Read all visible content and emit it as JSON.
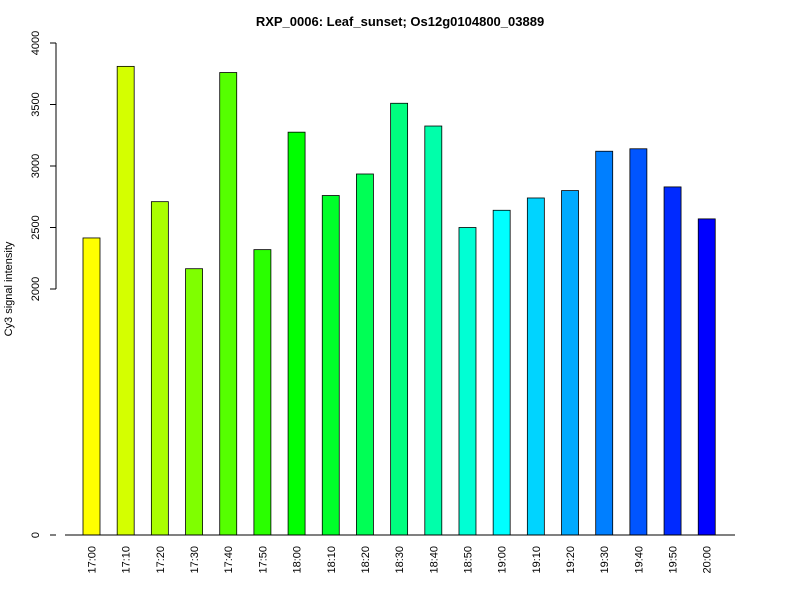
{
  "chart_data": {
    "type": "bar",
    "title": "RXP_0006: Leaf_sunset; Os12g0104800_03889",
    "xlabel": "",
    "ylabel": "Cy3 signal intensity",
    "ylim": [
      0,
      4000
    ],
    "y_ticks": [
      "0",
      "2000",
      "2500",
      "3000",
      "3500",
      "4000"
    ],
    "grid": false,
    "categories": [
      "17:00",
      "17:10",
      "17:20",
      "17:30",
      "17:40",
      "17:50",
      "18:00",
      "18:10",
      "18:20",
      "18:30",
      "18:40",
      "18:50",
      "19:00",
      "19:10",
      "19:20",
      "19:30",
      "19:40",
      "19:50",
      "20:00"
    ],
    "values": [
      2415,
      3810,
      2710,
      2165,
      3760,
      2320,
      3275,
      2760,
      2935,
      3510,
      3325,
      2500,
      2640,
      2740,
      2800,
      3120,
      3140,
      2830,
      2570
    ],
    "colors": [
      "#ffff00",
      "#d4ff00",
      "#aaff00",
      "#7fff00",
      "#55ff00",
      "#2aff00",
      "#00ff00",
      "#00ff2a",
      "#00ff55",
      "#00ff7f",
      "#00ffaa",
      "#00ffd4",
      "#00ffff",
      "#00d4ff",
      "#00aaff",
      "#007fff",
      "#0055ff",
      "#002aff",
      "#0000ff"
    ]
  }
}
